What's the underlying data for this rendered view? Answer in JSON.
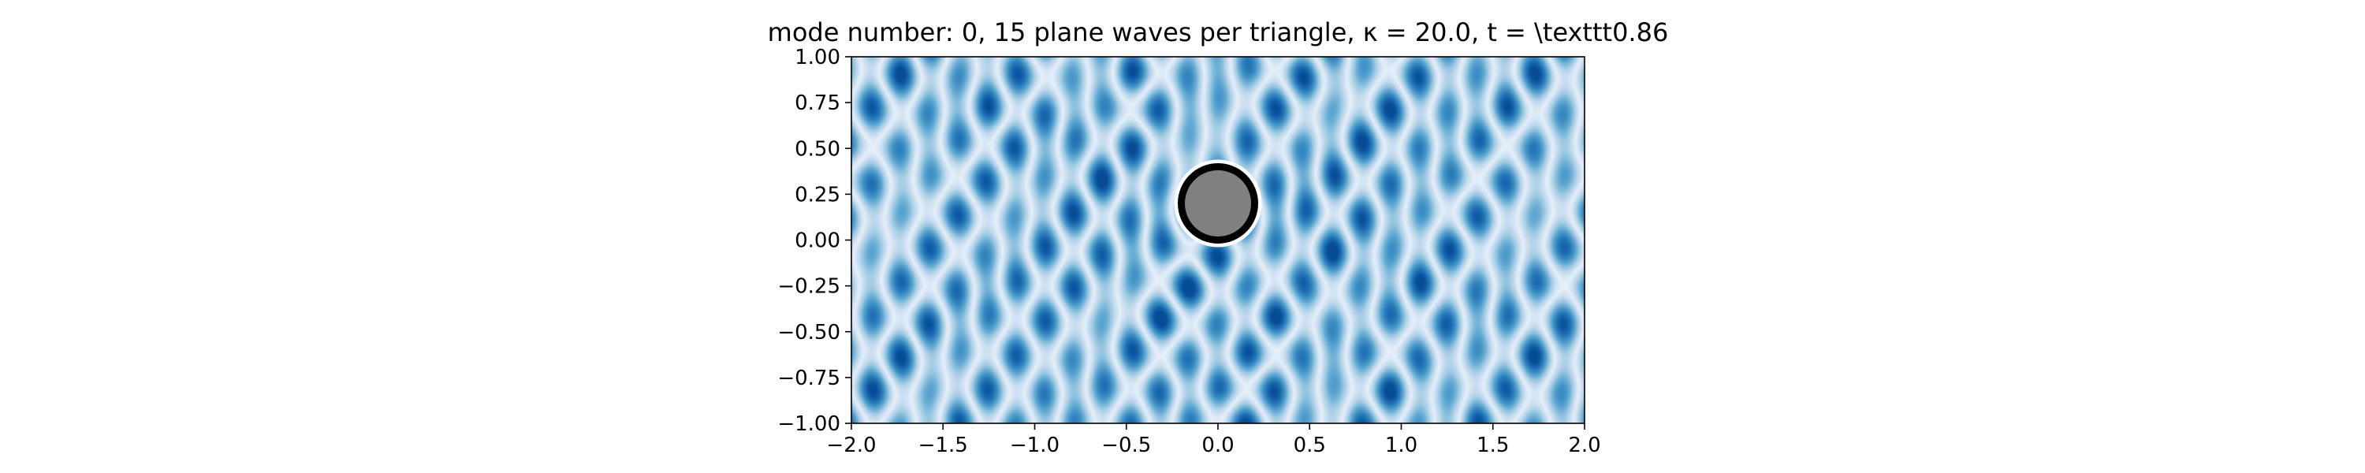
{
  "chart_data": {
    "type": "heatmap",
    "title": "mode number: 0, 15 plane waves per triangle, κ = 20.0, t =  \\texttt0.86",
    "xlabel": "",
    "ylabel": "",
    "xlim": [
      -2.0,
      2.0
    ],
    "ylim": [
      -1.0,
      1.0
    ],
    "xticks": [
      "−2.0",
      "−1.5",
      "−1.0",
      "−0.5",
      "0.0",
      "0.5",
      "1.0",
      "1.5",
      "2.0"
    ],
    "yticks": [
      "1.00",
      "0.75",
      "0.50",
      "0.25",
      "0.00",
      "−0.25",
      "−0.50",
      "−0.75",
      "−1.00"
    ],
    "xtick_values": [
      -2.0,
      -1.5,
      -1.0,
      -0.5,
      0.0,
      0.5,
      1.0,
      1.5,
      2.0
    ],
    "ytick_values": [
      1.0,
      0.75,
      0.5,
      0.25,
      0.0,
      -0.25,
      -0.5,
      -0.75,
      -1.0
    ],
    "colormap": "Blues",
    "colors": {
      "dark": "#08519c",
      "mid": "#6baed6",
      "light": "#f7fbff",
      "obstacle_fill": "#808080",
      "obstacle_edge": "#000000"
    },
    "field": {
      "kappa": 20.0,
      "t": 0.86,
      "mode_number": 0,
      "plane_waves_per_triangle": 15
    },
    "obstacle": {
      "shape": "circle",
      "center": [
        0.0,
        0.2
      ],
      "radius": 0.2
    },
    "grid": false
  }
}
